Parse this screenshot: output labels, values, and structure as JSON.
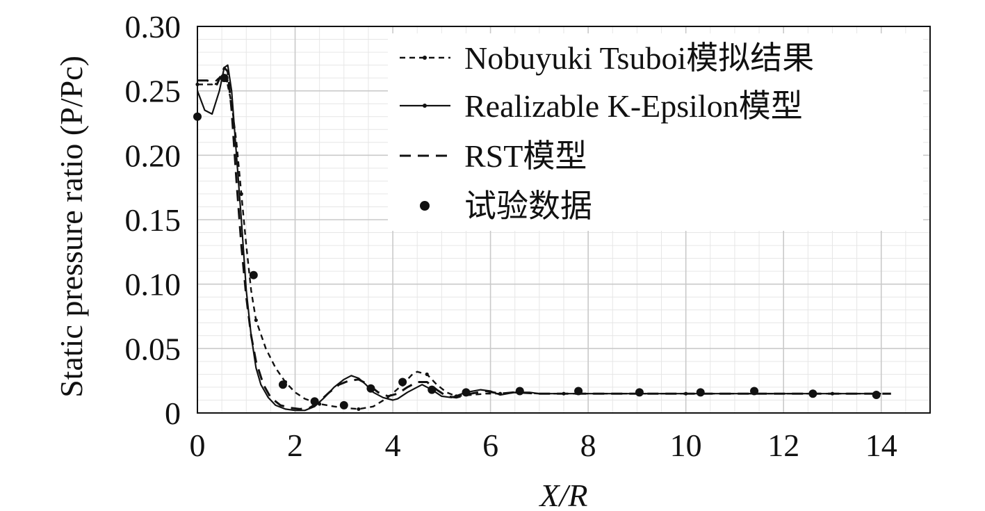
{
  "chart_data": {
    "type": "line",
    "title": "",
    "xlabel": "X/R",
    "ylabel": "Static pressure ratio (P/Pc)",
    "xlim": [
      0,
      15
    ],
    "ylim": [
      0,
      0.3
    ],
    "xticks": [
      0,
      2,
      4,
      6,
      8,
      10,
      12,
      14
    ],
    "xtick_labels": [
      "0",
      "2",
      "4",
      "6",
      "8",
      "10",
      "12",
      "14"
    ],
    "yticks": [
      0,
      0.05,
      0.1,
      0.15,
      0.2,
      0.25,
      0.3
    ],
    "ytick_labels": [
      "0",
      "0.05",
      "0.10",
      "0.15",
      "0.20",
      "0.25",
      "0.30"
    ],
    "grid": true,
    "legend_position": "top-right",
    "series": [
      {
        "name": "Nobuyuki Tsuboi模拟结果",
        "style": "dash-dot",
        "x": [
          0,
          0.3,
          0.5,
          0.6,
          0.7,
          0.8,
          0.9,
          1.0,
          1.1,
          1.2,
          1.4,
          1.6,
          1.8,
          2.0,
          2.2,
          2.5,
          2.8,
          3.0,
          3.3,
          3.6,
          3.9,
          4.2,
          4.4,
          4.5,
          4.7,
          4.9,
          5.1,
          5.3,
          5.6,
          5.9,
          6.2,
          6.6,
          7.0,
          7.5,
          8.0,
          9.0,
          10.0,
          11.0,
          12.0,
          13.0,
          14.0
        ],
        "y": [
          0.255,
          0.255,
          0.262,
          0.258,
          0.24,
          0.21,
          0.17,
          0.13,
          0.095,
          0.072,
          0.05,
          0.035,
          0.024,
          0.016,
          0.011,
          0.007,
          0.005,
          0.004,
          0.003,
          0.005,
          0.012,
          0.022,
          0.03,
          0.032,
          0.03,
          0.022,
          0.016,
          0.013,
          0.014,
          0.015,
          0.015,
          0.016,
          0.015,
          0.015,
          0.015,
          0.015,
          0.015,
          0.015,
          0.015,
          0.015,
          0.015
        ]
      },
      {
        "name": "Realizable K-Epsilon模型",
        "style": "solid",
        "x": [
          0,
          0.15,
          0.3,
          0.45,
          0.55,
          0.62,
          0.7,
          0.8,
          0.9,
          1.0,
          1.1,
          1.2,
          1.3,
          1.45,
          1.6,
          1.8,
          2.0,
          2.2,
          2.4,
          2.6,
          2.8,
          3.0,
          3.15,
          3.3,
          3.45,
          3.6,
          3.8,
          4.0,
          4.1,
          4.3,
          4.6,
          4.8,
          5.0,
          5.2,
          5.5,
          5.8,
          6.0,
          6.2,
          6.5,
          6.8,
          7.0,
          7.5,
          8.0,
          9.0,
          10.0,
          11.0,
          12.0,
          13.0,
          14.0
        ],
        "y": [
          0.25,
          0.235,
          0.232,
          0.25,
          0.268,
          0.27,
          0.25,
          0.2,
          0.15,
          0.095,
          0.06,
          0.035,
          0.022,
          0.012,
          0.006,
          0.003,
          0.002,
          0.002,
          0.005,
          0.012,
          0.02,
          0.026,
          0.029,
          0.027,
          0.022,
          0.016,
          0.012,
          0.01,
          0.011,
          0.016,
          0.022,
          0.018,
          0.013,
          0.012,
          0.016,
          0.018,
          0.017,
          0.014,
          0.016,
          0.016,
          0.015,
          0.015,
          0.015,
          0.015,
          0.015,
          0.015,
          0.015,
          0.015,
          0.015
        ]
      },
      {
        "name": "RST模型",
        "style": "dashed",
        "x": [
          0,
          0.2,
          0.4,
          0.55,
          0.62,
          0.7,
          0.8,
          0.9,
          1.0,
          1.1,
          1.2,
          1.35,
          1.5,
          1.7,
          1.9,
          2.1,
          2.3,
          2.5,
          2.7,
          2.9,
          3.1,
          3.3,
          3.5,
          3.7,
          3.9,
          4.1,
          4.3,
          4.5,
          4.7,
          4.9,
          5.1,
          5.3,
          5.6,
          5.9,
          6.2,
          6.5,
          7.0,
          7.5,
          8.0,
          9.0,
          10.0,
          11.0,
          12.0,
          13.0,
          14.0,
          14.2
        ],
        "y": [
          0.258,
          0.258,
          0.255,
          0.268,
          0.265,
          0.235,
          0.18,
          0.13,
          0.09,
          0.06,
          0.04,
          0.022,
          0.012,
          0.006,
          0.004,
          0.003,
          0.004,
          0.009,
          0.016,
          0.022,
          0.025,
          0.026,
          0.022,
          0.016,
          0.013,
          0.015,
          0.02,
          0.024,
          0.024,
          0.018,
          0.013,
          0.012,
          0.015,
          0.017,
          0.015,
          0.016,
          0.015,
          0.015,
          0.015,
          0.015,
          0.015,
          0.015,
          0.015,
          0.015,
          0.015,
          0.015
        ]
      },
      {
        "name": "试验数据",
        "style": "markers",
        "x": [
          0,
          0.55,
          1.15,
          1.75,
          2.4,
          3.0,
          3.55,
          4.2,
          4.8,
          5.5,
          6.6,
          7.8,
          9.05,
          10.3,
          11.4,
          12.6,
          13.9
        ],
        "y": [
          0.23,
          0.26,
          0.107,
          0.022,
          0.009,
          0.006,
          0.019,
          0.024,
          0.018,
          0.016,
          0.017,
          0.017,
          0.016,
          0.016,
          0.017,
          0.015,
          0.014
        ]
      }
    ]
  }
}
